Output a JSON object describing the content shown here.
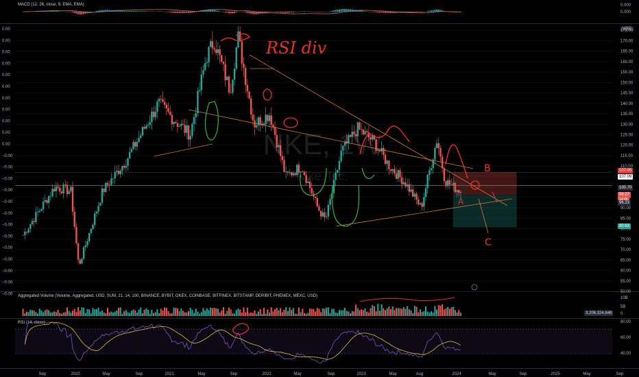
{
  "macd_pane": {
    "title": "MACD (12, 26, close, 9, EMA, EMA)",
    "axis_labels": [
      "0.000",
      "0.000"
    ]
  },
  "price_pane": {
    "watermark": "NKE, 1W",
    "watermark_sub": "Nike, Inc.",
    "currency": "USD",
    "right_axis": [
      "175.00",
      "170.00",
      "165.00",
      "160.00",
      "155.00",
      "150.00",
      "145.00",
      "140.00",
      "135.00",
      "130.00",
      "125.00",
      "120.00",
      "115.00",
      "110.00",
      "105.00",
      "100.00",
      "95.00",
      "90.00",
      "85.00",
      "80.00",
      "75.00",
      "70.00",
      "65.00",
      "60.00",
      "55.00",
      "50.00"
    ],
    "left_axis": [
      "0.00",
      "0.00",
      "0.00",
      "0.00",
      "0.00",
      "0.00",
      "0.00",
      "0.00",
      "0.00",
      "0.00",
      "0.00",
      "−0.00",
      "−0.00",
      "−0.00",
      "−0.00",
      "−0.00",
      "−0.00",
      "−0.00",
      "−0.00",
      "−0.00",
      "−0.00",
      "−0.00",
      "−0.00",
      "−0.00"
    ],
    "price_tags": {
      "stop": "107.05",
      "line1": "107.09",
      "current_line": "100.70",
      "last": "98.27",
      "countdown": "1d 9h",
      "entry": "96.23",
      "target": "80.63"
    },
    "annotations": {
      "rsi_div": "RSI div",
      "label_a": "A",
      "label_b": "B",
      "label_c": "C"
    },
    "colors": {
      "up": "#26a69a",
      "down": "#ef5350",
      "annotation": "#e8302a",
      "trend": "#d2793a",
      "green_draw": "#3aa83a"
    }
  },
  "volume_pane": {
    "title": "Aggregated Volume (Volume, Aggregated, USD, SUM, 21, 14, 100, BINANCE, BYBIT, OKEX, COINBASE, BITFINEX, BITSTAMP, DERIBIT, PHEMEX, MEXC, USD)",
    "axis_labels": [
      "10B",
      "5B",
      "0"
    ],
    "value_tag": "3,206,324,648"
  },
  "rsi_pane": {
    "title": "RSI (14, close)",
    "axis_labels": [
      "80.00",
      "60.00",
      "40.00"
    ]
  },
  "time_axis": [
    "Sep",
    "2020",
    "May",
    "Sep",
    "2021",
    "May",
    "Sep",
    "2022",
    "May",
    "Sep",
    "2023",
    "May",
    "Aug",
    "2024",
    "May",
    "Sep",
    "2025",
    "May",
    "Sep"
  ],
  "chart_data": {
    "type": "candlestick",
    "symbol": "NKE",
    "interval": "1W",
    "ylim": [
      50,
      178
    ],
    "x_range": [
      "2019-07",
      "2025-10"
    ],
    "price_path": [
      [
        "2019-08",
        77
      ],
      [
        "2019-12",
        100
      ],
      [
        "2020-02",
        98
      ],
      [
        "2020-03",
        62
      ],
      [
        "2020-06",
        98
      ],
      [
        "2020-09",
        113
      ],
      [
        "2021-01",
        140
      ],
      [
        "2021-03",
        132
      ],
      [
        "2021-05",
        125
      ],
      [
        "2021-07",
        162
      ],
      [
        "2021-08",
        170
      ],
      [
        "2021-10",
        146
      ],
      [
        "2021-11",
        172
      ],
      [
        "2022-01",
        130
      ],
      [
        "2022-03",
        135
      ],
      [
        "2022-05",
        105
      ],
      [
        "2022-07",
        110
      ],
      [
        "2022-09",
        90
      ],
      [
        "2022-10",
        84
      ],
      [
        "2022-12",
        117
      ],
      [
        "2023-02",
        128
      ],
      [
        "2023-04",
        122
      ],
      [
        "2023-06",
        110
      ],
      [
        "2023-08",
        102
      ],
      [
        "2023-10",
        90
      ],
      [
        "2023-11",
        107
      ],
      [
        "2023-12",
        123
      ],
      [
        "2024-01",
        103
      ],
      [
        "2024-02",
        100
      ],
      [
        "2024-03",
        98
      ]
    ],
    "position": {
      "entry": 96.23,
      "stop": 107.05,
      "target": 80.63
    }
  }
}
